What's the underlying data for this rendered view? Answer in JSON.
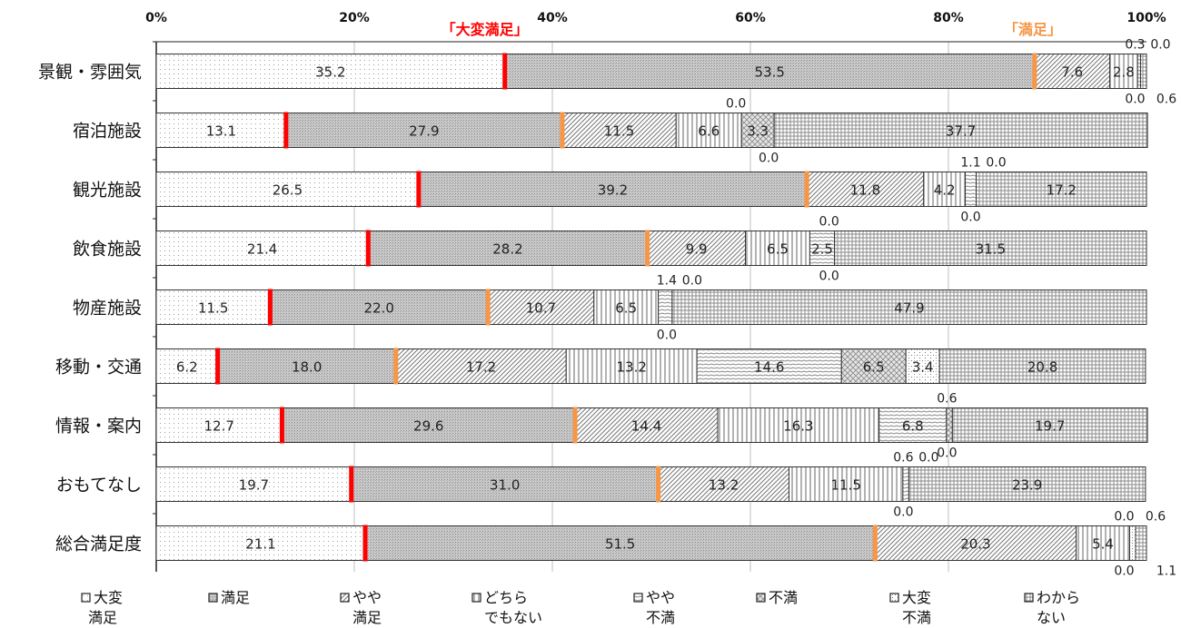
{
  "chart_data": {
    "type": "bar",
    "orientation": "horizontal",
    "stacked": true,
    "percent": true,
    "x_ticks": [
      "0%",
      "20%",
      "40%",
      "60%",
      "80%",
      "100%"
    ],
    "xlim": [
      0,
      100
    ],
    "categories": [
      "景観・雰囲気",
      "宿泊施設",
      "観光施設",
      "飲食施設",
      "物産施設",
      "移動・交通",
      "情報・案内",
      "おもてなし",
      "総合満足度"
    ],
    "series": [
      {
        "name": "大変満足",
        "legend_lines": [
          "大変",
          "満足"
        ],
        "values": [
          35.2,
          13.1,
          26.5,
          21.4,
          11.5,
          6.2,
          12.7,
          19.7,
          21.1
        ]
      },
      {
        "name": "満足",
        "legend_lines": [
          "満足"
        ],
        "values": [
          53.5,
          27.9,
          39.2,
          28.2,
          22.0,
          18.0,
          29.6,
          31.0,
          51.5
        ]
      },
      {
        "name": "やや満足",
        "legend_lines": [
          "やや",
          "満足"
        ],
        "values": [
          7.6,
          11.5,
          11.8,
          9.9,
          10.7,
          17.2,
          14.4,
          13.2,
          20.3
        ]
      },
      {
        "name": "どちらでもない",
        "legend_lines": [
          "どちら",
          "でもない"
        ],
        "values": [
          2.8,
          6.6,
          4.2,
          6.5,
          6.5,
          13.2,
          16.3,
          11.5,
          5.4
        ]
      },
      {
        "name": "やや不満",
        "legend_lines": [
          "やや",
          "不満"
        ],
        "values": [
          0.3,
          0.0,
          1.1,
          2.5,
          1.4,
          14.6,
          6.8,
          0.6,
          0.0
        ]
      },
      {
        "name": "不満",
        "legend_lines": [
          "不満"
        ],
        "values": [
          0.0,
          3.3,
          0.0,
          0.0,
          0.0,
          6.5,
          0.6,
          0.0,
          0.0
        ]
      },
      {
        "name": "大変不満",
        "legend_lines": [
          "大変",
          "不満"
        ],
        "values": [
          0.0,
          0.0,
          0.0,
          0.0,
          0.0,
          3.4,
          0.0,
          0.0,
          0.6
        ]
      },
      {
        "name": "わからない",
        "legend_lines": [
          "わから",
          "ない"
        ],
        "values": [
          0.6,
          37.7,
          17.2,
          31.5,
          47.9,
          20.8,
          19.7,
          23.9,
          1.1
        ]
      }
    ],
    "markers": [
      {
        "label": "「大変満足」",
        "color": "#ff0000",
        "after_series": 0
      },
      {
        "label": "「満足」",
        "color": "#f79646",
        "after_series": 1
      }
    ],
    "colors": {
      "marker_red": "#ff0000",
      "marker_orange": "#f79646",
      "gridline": "#bfbfbf",
      "bar_outline": "#333333"
    },
    "legend_position": "bottom",
    "grid": true
  }
}
